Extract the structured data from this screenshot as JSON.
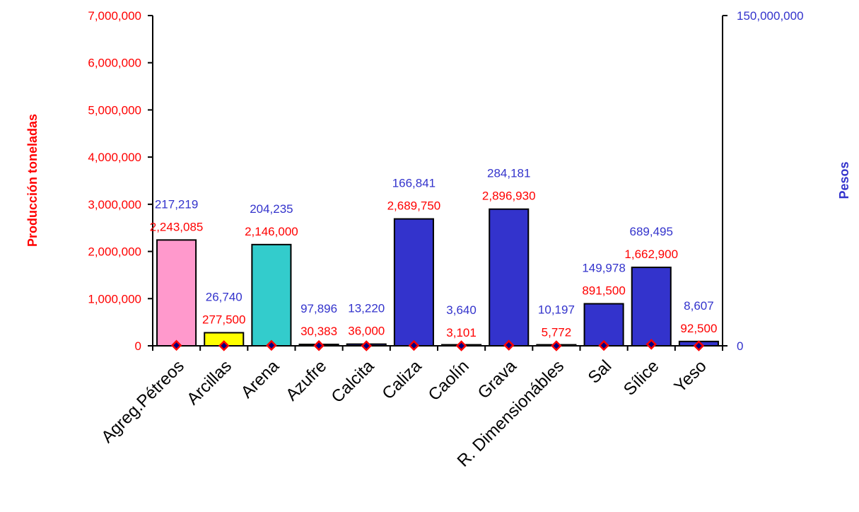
{
  "chart_data": {
    "type": "bar",
    "categories": [
      "Agreg.Pétreos",
      "Arcillas",
      "Arena",
      "Azufre",
      "Calcita",
      "Caliza",
      "Caolín",
      "Grava",
      "R. Dimensionábles",
      "Sal",
      "Sílice",
      "Yeso"
    ],
    "series": [
      {
        "name": "Producción toneladas",
        "axis": "left",
        "mark": "bar",
        "values": [
          2243085,
          277500,
          2146000,
          30383,
          36000,
          2689750,
          3101,
          2896930,
          5772,
          891500,
          1662900,
          92500
        ],
        "labels": [
          "2,243,085",
          "277,500",
          "2,146,000",
          "30,383",
          "36,000",
          "2,689,750",
          "3,101",
          "2,896,930",
          "5,772",
          "891,500",
          "1,662,900",
          "92,500"
        ]
      },
      {
        "name": "Pesos",
        "axis": "right",
        "mark": "point",
        "values": [
          217219,
          26740,
          204235,
          97896,
          13220,
          166841,
          3640,
          284181,
          10197,
          149978,
          689495,
          8607
        ],
        "labels": [
          "217,219",
          "26,740",
          "204,235",
          "97,896",
          "13,220",
          "166,841",
          "3,640",
          "284,181",
          "10,197",
          "149,978",
          "689,495",
          "8,607"
        ]
      }
    ],
    "bar_colors": [
      "#ff99cc",
      "#ffff00",
      "#33cccc",
      "#3333cc",
      "#3333cc",
      "#3333cc",
      "#3333cc",
      "#3333cc",
      "#3333cc",
      "#3333cc",
      "#3333cc",
      "#3333cc"
    ],
    "marker_color": "#ff0000",
    "marker_fill": "#000080",
    "left_axis": {
      "label": "Producción toneladas",
      "ylim": [
        0,
        7000000
      ],
      "ticks": [
        "0",
        "1,000,000",
        "2,000,000",
        "3,000,000",
        "4,000,000",
        "5,000,000",
        "6,000,000",
        "7,000,000"
      ],
      "color": "#ff0000"
    },
    "right_axis": {
      "label": "Pesos",
      "ylim": [
        0,
        150000000
      ],
      "ticks": [
        "0",
        "150,000,000"
      ],
      "color": "#3333cc"
    },
    "grid": false,
    "legend": "none"
  }
}
